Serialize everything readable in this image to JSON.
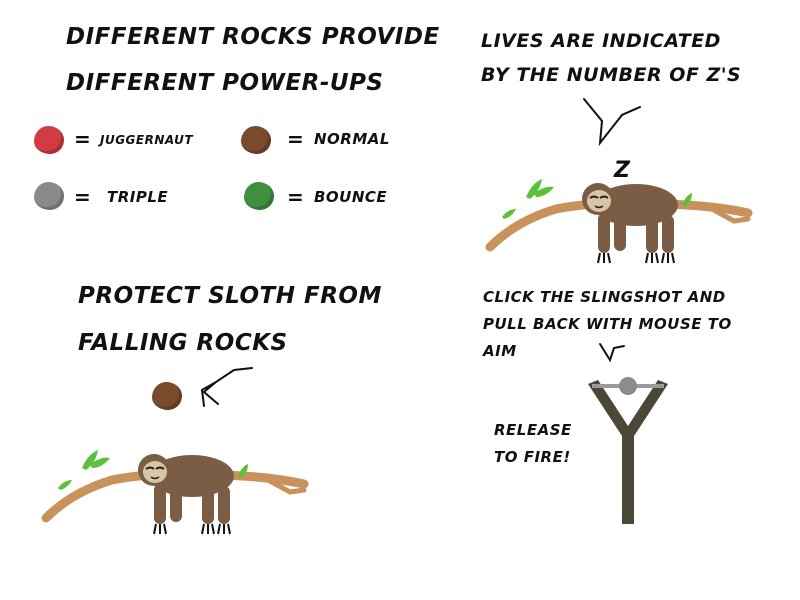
{
  "power_ups": {
    "title_line1": "DIFFERENT ROCKS PROVIDE",
    "title_line2": "DIFFERENT POWER-UPS",
    "equals": "=",
    "rocks": [
      {
        "label": "JUGGERNAUT",
        "color": "#d23a44"
      },
      {
        "label": "NORMAL",
        "color": "#7a4a2c"
      },
      {
        "label": "TRIPLE",
        "color": "#8a8a8a"
      },
      {
        "label": "BOUNCE",
        "color": "#3f8f3f"
      }
    ]
  },
  "lives": {
    "line1": "LIVES ARE INDICATED",
    "line2": "BY THE NUMBER OF Z'S",
    "z_marker": "Z"
  },
  "protect": {
    "line1": "PROTECT SLOTH FROM",
    "line2": "FALLING ROCKS",
    "rock_color": "#7a4a2c"
  },
  "slingshot": {
    "line1": "CLICK THE SLINGSHOT AND",
    "line2": "PULL BACK WITH MOUSE TO",
    "line3": "AIM",
    "release1": "RELEASE",
    "release2": "TO FIRE!"
  },
  "colors": {
    "branch": "#c9925d",
    "leaf": "#5cc13a",
    "sloth_fur": "#7b5c45",
    "sloth_face": "#d9c5a4",
    "slingshot": "#4b4838",
    "slingshot_ball": "#8c8c8c"
  }
}
